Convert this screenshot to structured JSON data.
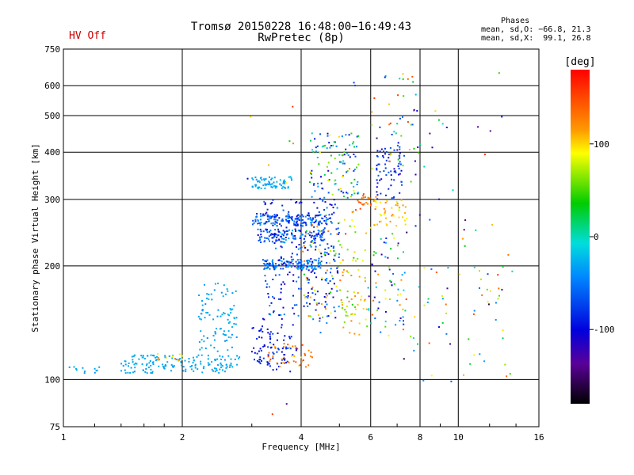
{
  "header": {
    "title_line1": "Tromsø 20150228 16:48:00−16:49:43",
    "title_line2": "RwPretec (8p)",
    "hv_status": "HV Off",
    "hv_color": "#cc0000"
  },
  "phase_box": {
    "title": "Phases",
    "o_line": "mean, sd,O: −66.8, 21.3",
    "x_line": "mean, sd,X:  99.1, 26.8"
  },
  "chart_data": {
    "type": "scatter",
    "xlabel": "Frequency [MHz]",
    "ylabel": "Stationary phase Virtual Height [km]",
    "x_scale": "log",
    "y_scale": "log",
    "xlim": [
      1,
      16
    ],
    "ylim": [
      75,
      750
    ],
    "x_ticks": [
      1,
      2,
      4,
      6,
      8,
      10,
      16
    ],
    "y_ticks": [
      75,
      100,
      200,
      300,
      400,
      500,
      600,
      750
    ],
    "grid": true,
    "colorbar": {
      "label": "[deg]",
      "range": [
        -180,
        180
      ],
      "ticks": [
        100,
        0,
        -100
      ]
    },
    "clusters": [
      {
        "f": [
          1.0,
          1.25
        ],
        "h": [
          104,
          108
        ],
        "phase": [
          -40,
          -20
        ],
        "n": 12
      },
      {
        "f": [
          1.4,
          2.8
        ],
        "h": [
          104,
          116
        ],
        "phase": [
          -35,
          -25
        ],
        "n": 160
      },
      {
        "f": [
          1.7,
          2.0
        ],
        "h": [
          110,
          118
        ],
        "phase": [
          60,
          140
        ],
        "n": 10
      },
      {
        "f": [
          2.2,
          2.75
        ],
        "h": [
          118,
          180
        ],
        "phase": [
          -40,
          -20
        ],
        "n": 90
      },
      {
        "f": [
          3.0,
          3.8
        ],
        "h": [
          320,
          345
        ],
        "phase": [
          -40,
          -20
        ],
        "n": 70
      },
      {
        "f": [
          3.0,
          4.8
        ],
        "h": [
          255,
          275
        ],
        "phase": [
          -110,
          -30
        ],
        "n": 150
      },
      {
        "f": [
          3.1,
          4.6
        ],
        "h": [
          230,
          250
        ],
        "phase": [
          -110,
          -30
        ],
        "n": 120
      },
      {
        "f": [
          3.2,
          4.5
        ],
        "h": [
          196,
          208
        ],
        "phase": [
          -80,
          -25
        ],
        "n": 110
      },
      {
        "f": [
          3.0,
          3.9
        ],
        "h": [
          105,
          140
        ],
        "phase": [
          -110,
          -70
        ],
        "n": 90
      },
      {
        "f": [
          3.3,
          4.3
        ],
        "h": [
          108,
          125
        ],
        "phase": [
          90,
          160
        ],
        "n": 40
      },
      {
        "f": [
          3.2,
          5.0
        ],
        "h": [
          140,
          300
        ],
        "phase": [
          -120,
          -40
        ],
        "n": 260
      },
      {
        "f": [
          4.0,
          5.5
        ],
        "h": [
          140,
          280
        ],
        "phase": [
          30,
          140
        ],
        "n": 80
      },
      {
        "f": [
          4.2,
          5.6
        ],
        "h": [
          300,
          450
        ],
        "phase": [
          -120,
          100
        ],
        "n": 110
      },
      {
        "f": [
          5.5,
          6.2
        ],
        "h": [
          280,
          310
        ],
        "phase": [
          110,
          160
        ],
        "n": 25
      },
      {
        "f": [
          5.0,
          5.9
        ],
        "h": [
          130,
          230
        ],
        "phase": [
          60,
          130
        ],
        "n": 40
      },
      {
        "f": [
          6.0,
          7.5
        ],
        "h": [
          250,
          300
        ],
        "phase": [
          80,
          130
        ],
        "n": 45
      },
      {
        "f": [
          6.2,
          7.2
        ],
        "h": [
          300,
          420
        ],
        "phase": [
          -120,
          -60
        ],
        "n": 70
      },
      {
        "f": [
          5.8,
          7.4
        ],
        "h": [
          130,
          250
        ],
        "phase": [
          -130,
          140
        ],
        "n": 70
      },
      {
        "f": [
          6.5,
          8.0
        ],
        "h": [
          350,
          650
        ],
        "phase": [
          -120,
          160
        ],
        "n": 40
      },
      {
        "f": [
          7.5,
          9.5
        ],
        "h": [
          110,
          480
        ],
        "phase": [
          -130,
          150
        ],
        "n": 30
      },
      {
        "f": [
          10.0,
          13.5
        ],
        "h": [
          100,
          210
        ],
        "phase": [
          -120,
          150
        ],
        "n": 25
      },
      {
        "f": [
          2.9,
          14.0
        ],
        "h": [
          80,
          650
        ],
        "phase": [
          -170,
          170
        ],
        "n": 70
      }
    ]
  }
}
